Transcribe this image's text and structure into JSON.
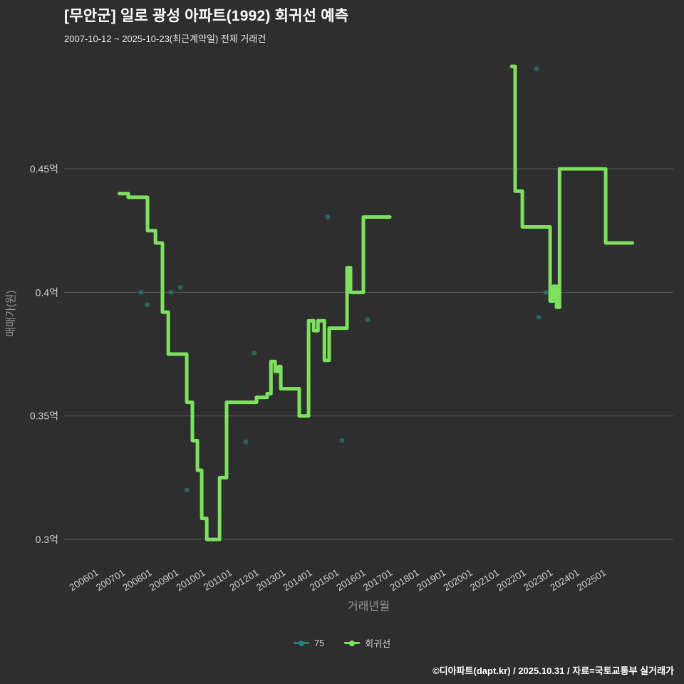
{
  "title": "[무안군] 일로 광성 아파트(1992) 회귀선 예측",
  "subtitle": "2007-10-12 ~ 2025-10-23(최근계약일) 전체 거래건",
  "footer": "©디아파트(dapt.kr) / 2025.10.31 / 자료=국토교통부 실거래가",
  "colors": {
    "background": "#2e2e2e",
    "grid": "#58585c",
    "tick_label": "#cfcfcf",
    "axis_label": "#949494",
    "title": "#ffffff",
    "regression_green": "#7de05f",
    "scatter_teal": "#267373"
  },
  "chart_data": {
    "type": "line",
    "xlabel": "거래년월",
    "ylabel": "매매가(원)",
    "x_domain": [
      2004.93,
      2027.73
    ],
    "y_domain": [
      0.2905,
      0.4924
    ],
    "grid": "horizontal-only",
    "legend_position": "bottom-center",
    "y_ticks": [
      {
        "value": 0.3,
        "label": "0.3억"
      },
      {
        "value": 0.35,
        "label": "0.35억"
      },
      {
        "value": 0.4,
        "label": "0.4억"
      },
      {
        "value": 0.45,
        "label": "0.45억"
      }
    ],
    "x_ticks": [
      {
        "t": 2006,
        "label": "200601"
      },
      {
        "t": 2007,
        "label": "200701"
      },
      {
        "t": 2008,
        "label": "200801"
      },
      {
        "t": 2009,
        "label": "200901"
      },
      {
        "t": 2010,
        "label": "201001"
      },
      {
        "t": 2011,
        "label": "201101"
      },
      {
        "t": 2012,
        "label": "201201"
      },
      {
        "t": 2013,
        "label": "201301"
      },
      {
        "t": 2014,
        "label": "201401"
      },
      {
        "t": 2015,
        "label": "201501"
      },
      {
        "t": 2016,
        "label": "201601"
      },
      {
        "t": 2017,
        "label": "201701"
      },
      {
        "t": 2018,
        "label": "201801"
      },
      {
        "t": 2019,
        "label": "201901"
      },
      {
        "t": 2020,
        "label": "202001"
      },
      {
        "t": 2021,
        "label": "202101"
      },
      {
        "t": 2022,
        "label": "202201"
      },
      {
        "t": 2023,
        "label": "202301"
      },
      {
        "t": 2024,
        "label": "202401"
      },
      {
        "t": 2025,
        "label": "202501"
      }
    ],
    "series": [
      {
        "name": "75",
        "type": "scatter",
        "color": "#267373",
        "opacity": 0.8,
        "points": [
          [
            2007.81,
            0.4
          ],
          [
            2008.05,
            0.395
          ],
          [
            2008.93,
            0.4
          ],
          [
            2009.28,
            0.402
          ],
          [
            2009.52,
            0.32
          ],
          [
            2011.73,
            0.3395
          ],
          [
            2012.05,
            0.3755
          ],
          [
            2014.8,
            0.4305
          ],
          [
            2015.33,
            0.34
          ],
          [
            2016.29,
            0.389
          ],
          [
            2022.61,
            0.4905
          ],
          [
            2022.69,
            0.39
          ],
          [
            2022.96,
            0.4
          ]
        ]
      },
      {
        "name": "회귀선",
        "type": "line",
        "color": "#7de05f",
        "width": 5,
        "segments": [
          [
            [
              2007.0,
              0.44
            ],
            [
              2007.33,
              0.44
            ],
            [
              2007.33,
              0.4385
            ],
            [
              2008.05,
              0.4385
            ],
            [
              2008.05,
              0.425
            ],
            [
              2008.35,
              0.425
            ],
            [
              2008.35,
              0.42
            ],
            [
              2008.61,
              0.42
            ],
            [
              2008.61,
              0.392
            ],
            [
              2008.83,
              0.392
            ],
            [
              2008.83,
              0.375
            ],
            [
              2009.52,
              0.375
            ],
            [
              2009.52,
              0.3555
            ],
            [
              2009.73,
              0.3555
            ],
            [
              2009.73,
              0.34
            ],
            [
              2009.92,
              0.34
            ],
            [
              2009.92,
              0.328
            ],
            [
              2010.08,
              0.328
            ],
            [
              2010.08,
              0.3085
            ],
            [
              2010.27,
              0.3085
            ],
            [
              2010.27,
              0.3
            ],
            [
              2010.75,
              0.3
            ],
            [
              2010.75,
              0.325
            ],
            [
              2011.01,
              0.325
            ],
            [
              2011.01,
              0.3555
            ],
            [
              2012.13,
              0.3555
            ],
            [
              2012.13,
              0.3575
            ],
            [
              2012.53,
              0.3575
            ],
            [
              2012.53,
              0.359
            ],
            [
              2012.67,
              0.359
            ],
            [
              2012.67,
              0.372
            ],
            [
              2012.83,
              0.372
            ],
            [
              2012.83,
              0.368
            ],
            [
              2012.96,
              0.368
            ],
            [
              2012.96,
              0.37
            ],
            [
              2013.04,
              0.37
            ],
            [
              2013.04,
              0.361
            ],
            [
              2013.73,
              0.361
            ],
            [
              2013.73,
              0.35
            ],
            [
              2014.08,
              0.35
            ],
            [
              2014.08,
              0.3885
            ],
            [
              2014.27,
              0.3885
            ],
            [
              2014.27,
              0.3845
            ],
            [
              2014.43,
              0.3845
            ],
            [
              2014.43,
              0.3885
            ],
            [
              2014.67,
              0.3885
            ],
            [
              2014.67,
              0.3725
            ],
            [
              2014.85,
              0.3725
            ],
            [
              2014.85,
              0.3855
            ],
            [
              2015.52,
              0.3855
            ],
            [
              2015.52,
              0.41
            ],
            [
              2015.65,
              0.41
            ],
            [
              2015.65,
              0.4
            ],
            [
              2016.13,
              0.4
            ],
            [
              2016.13,
              0.4305
            ],
            [
              2017.12,
              0.4305
            ]
          ],
          [
            [
              2021.68,
              0.4915
            ],
            [
              2021.81,
              0.4915
            ],
            [
              2021.81,
              0.441
            ],
            [
              2022.08,
              0.441
            ],
            [
              2022.08,
              0.4265
            ],
            [
              2023.12,
              0.4265
            ],
            [
              2023.12,
              0.3965
            ],
            [
              2023.25,
              0.3965
            ],
            [
              2023.25,
              0.4025
            ],
            [
              2023.36,
              0.4025
            ],
            [
              2023.36,
              0.394
            ],
            [
              2023.47,
              0.394
            ],
            [
              2023.47,
              0.45
            ],
            [
              2025.2,
              0.45
            ],
            [
              2025.2,
              0.42
            ],
            [
              2026.2,
              0.42
            ]
          ]
        ]
      }
    ],
    "legend": [
      {
        "label": "75",
        "color": "#267f7f"
      },
      {
        "label": "회귀선",
        "color": "#7de05f"
      }
    ]
  }
}
